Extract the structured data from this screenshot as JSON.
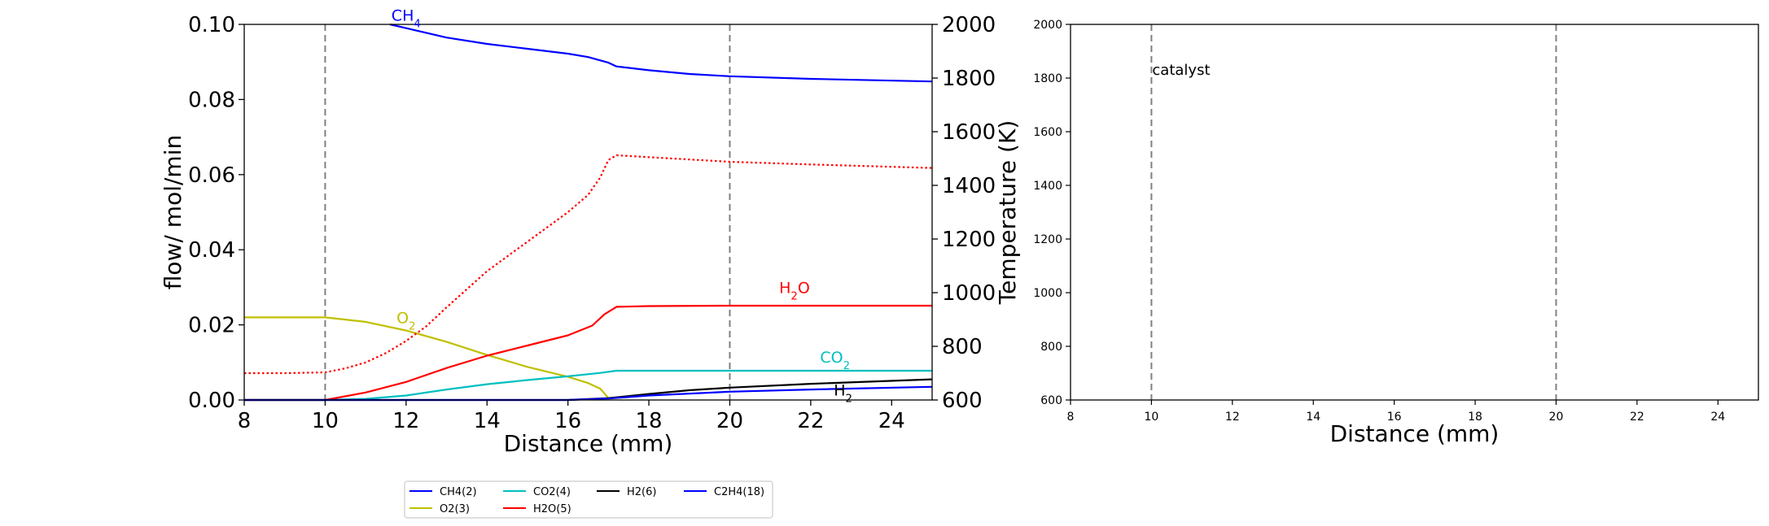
{
  "chart_data": [
    {
      "type": "line",
      "xlabel": "Distance (mm)",
      "ylabel": "flow/ mol/min",
      "ylabel_right": "Temperature (K)",
      "xlim": [
        8,
        25
      ],
      "ylim": [
        0,
        0.1
      ],
      "ylim_right": [
        600,
        2000
      ],
      "x_ticks": [
        "8",
        "10",
        "12",
        "14",
        "16",
        "18",
        "20",
        "22",
        "24"
      ],
      "y_ticks": [
        "0.00",
        "0.02",
        "0.04",
        "0.06",
        "0.08",
        "0.10"
      ],
      "y_ticks_right": [
        "600",
        "800",
        "1000",
        "1200",
        "1400",
        "1600",
        "1800",
        "2000"
      ],
      "vlines": [
        10,
        20
      ],
      "grid": false,
      "colors": {
        "CH4": "#0000ff",
        "O2": "#bfbf00",
        "CO2": "#00bfbf",
        "H2O": "#ff0000",
        "H2": "#000000",
        "C2H4": "#0000ff",
        "temperature": "#ff0000",
        "vline": "#808080"
      },
      "series": [
        {
          "name": "CH4(2)",
          "color": "#0000ff",
          "x": [
            11.6,
            12,
            13,
            14,
            15,
            16,
            16.5,
            17,
            17.2,
            18,
            19,
            20,
            22,
            25
          ],
          "values": [
            0.1,
            0.099,
            0.0965,
            0.0948,
            0.0935,
            0.0922,
            0.0913,
            0.0898,
            0.0888,
            0.0878,
            0.0868,
            0.0862,
            0.0855,
            0.0848
          ]
        },
        {
          "name": "O2(3)",
          "color": "#bfbf00",
          "x": [
            8,
            10,
            11,
            12,
            13,
            14,
            15,
            16,
            16.5,
            16.8,
            17
          ],
          "values": [
            0.022,
            0.022,
            0.0208,
            0.0185,
            0.0155,
            0.012,
            0.0088,
            0.0062,
            0.0045,
            0.003,
            0.0005
          ]
        },
        {
          "name": "CO2(4)",
          "color": "#00bfbf",
          "x": [
            8,
            10,
            11,
            12,
            13,
            14,
            15,
            16,
            16.8,
            17.2,
            18,
            20,
            25
          ],
          "values": [
            0,
            0,
            0.0003,
            0.0012,
            0.0028,
            0.0042,
            0.0053,
            0.0063,
            0.0072,
            0.0078,
            0.0078,
            0.0078,
            0.0078
          ]
        },
        {
          "name": "H2O(5)",
          "color": "#ff0000",
          "x": [
            8,
            10,
            11,
            12,
            13,
            14,
            15,
            16,
            16.6,
            16.9,
            17.2,
            18,
            20,
            25
          ],
          "values": [
            0,
            0,
            0.002,
            0.0048,
            0.0085,
            0.0118,
            0.0145,
            0.0172,
            0.0198,
            0.0228,
            0.0248,
            0.025,
            0.0251,
            0.0251
          ]
        },
        {
          "name": "H2(6)",
          "color": "#000000",
          "x": [
            8,
            16,
            17,
            18,
            19,
            20,
            22,
            25
          ],
          "values": [
            0,
            0,
            0.0005,
            0.0016,
            0.0026,
            0.0033,
            0.0043,
            0.0055
          ]
        },
        {
          "name": "C2H4(18)",
          "color": "#0000ff",
          "x": [
            8,
            16,
            17,
            18,
            20,
            22,
            25
          ],
          "values": [
            0,
            0,
            0.0004,
            0.0012,
            0.0022,
            0.0028,
            0.0035
          ]
        },
        {
          "name": "Temperature",
          "axis": "right",
          "linestyle": "dotted",
          "color": "#ff0000",
          "x": [
            8,
            9,
            10,
            10.5,
            11,
            11.5,
            12,
            12.5,
            13,
            14,
            15,
            16,
            16.5,
            16.8,
            17,
            17.2,
            18,
            20,
            22,
            25
          ],
          "values": [
            700,
            700,
            703,
            718,
            740,
            775,
            820,
            875,
            945,
            1080,
            1190,
            1300,
            1365,
            1430,
            1495,
            1512,
            1505,
            1488,
            1478,
            1465
          ]
        }
      ],
      "curve_labels": [
        {
          "text": "CH₄",
          "color": "#0000ff",
          "x": 12,
          "y": 0.101
        },
        {
          "text": "O₂",
          "color": "#bfbf00",
          "x": 12,
          "y": 0.0205
        },
        {
          "text": "H₂O",
          "color": "#ff0000",
          "x": 21.6,
          "y": 0.0285
        },
        {
          "text": "CO₂",
          "color": "#00bfbf",
          "x": 22.6,
          "y": 0.01
        },
        {
          "text": "H₂",
          "color": "#000000",
          "x": 22.8,
          "y": 0.0012
        }
      ],
      "legend": {
        "placement": "bottom-center",
        "ncol": 4,
        "entries": [
          {
            "label": "CH4(2)",
            "color": "#0000ff"
          },
          {
            "label": "CO2(4)",
            "color": "#00bfbf"
          },
          {
            "label": "H2(6)",
            "color": "#000000"
          },
          {
            "label": "C2H4(18)",
            "color": "#0000ff"
          },
          {
            "label": "O2(3)",
            "color": "#bfbf00"
          },
          {
            "label": "H2O(5)",
            "color": "#ff0000"
          }
        ]
      }
    },
    {
      "type": "line",
      "xlabel": "Distance (mm)",
      "ylabel": "",
      "xlim": [
        8,
        25
      ],
      "ylim": [
        600,
        2000
      ],
      "x_ticks": [
        "8",
        "10",
        "12",
        "14",
        "16",
        "18",
        "20",
        "22",
        "24"
      ],
      "y_ticks": [
        "600",
        "800",
        "1000",
        "1200",
        "1400",
        "1600",
        "1800",
        "2000"
      ],
      "vlines": [
        10,
        20
      ],
      "grid": false,
      "series": [],
      "annotations": [
        {
          "text": "catalyst",
          "x": 10,
          "y": 1830
        }
      ]
    }
  ]
}
